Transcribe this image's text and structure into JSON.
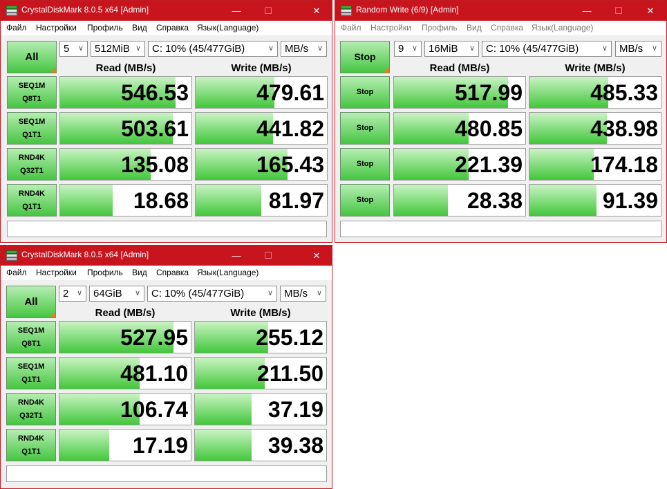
{
  "windows": [
    {
      "title": "CrystalDiskMark 8.0.5 x64 [Admin]",
      "controls": {
        "minimize": "—",
        "maximize": "☐",
        "close": "✕"
      },
      "menu": [
        "Файл",
        "Настройки",
        "Профиль",
        "Вид",
        "Справка",
        "Язык(Language)"
      ],
      "main_button": "All",
      "selects": {
        "count": "5",
        "size": "512MiB",
        "drive": "C: 10% (45/477GiB)",
        "unit": "MB/s"
      },
      "headers": {
        "read": "Read (MB/s)",
        "write": "Write (MB/s)"
      },
      "rows": [
        {
          "line1": "SEQ1M",
          "line2": "Q8T1",
          "read": "546.53",
          "write": "479.61",
          "read_fill": 0.88,
          "write_fill": 0.6
        },
        {
          "line1": "SEQ1M",
          "line2": "Q1T1",
          "read": "503.61",
          "write": "441.82",
          "read_fill": 0.86,
          "write_fill": 0.59
        },
        {
          "line1": "RND4K",
          "line2": "Q32T1",
          "read": "135.08",
          "write": "165.43",
          "read_fill": 0.69,
          "write_fill": 0.7
        },
        {
          "line1": "RND4K",
          "line2": "Q1T1",
          "read": "18.68",
          "write": "81.97",
          "read_fill": 0.4,
          "write_fill": 0.5
        }
      ],
      "status": ""
    },
    {
      "title": "Random Write (6/9) [Admin]",
      "controls": {
        "minimize": "—",
        "maximize": "☐",
        "close": "✕"
      },
      "menu": [
        "Файл",
        "Настройки",
        "Профиль",
        "Вид",
        "Справка",
        "Язык(Language)"
      ],
      "main_button": "Stop",
      "row_button": "Stop",
      "selects": {
        "count": "9",
        "size": "16MiB",
        "drive": "C: 10% (45/477GiB)",
        "unit": "MB/s"
      },
      "headers": {
        "read": "Read (MB/s)",
        "write": "Write (MB/s)"
      },
      "rows": [
        {
          "read": "517.99",
          "write": "485.33",
          "read_fill": 0.87,
          "write_fill": 0.6
        },
        {
          "read": "480.85",
          "write": "438.98",
          "read_fill": 0.57,
          "write_fill": 0.59
        },
        {
          "read": "221.39",
          "write": "174.18",
          "read_fill": 0.57,
          "write_fill": 0.49
        },
        {
          "read": "28.38",
          "write": "91.39",
          "read_fill": 0.41,
          "write_fill": 0.51
        }
      ],
      "status": ""
    },
    {
      "title": "CrystalDiskMark 8.0.5 x64 [Admin]",
      "controls": {
        "minimize": "—",
        "maximize": "☐",
        "close": "✕"
      },
      "menu": [
        "Файл",
        "Настройки",
        "Профиль",
        "Вид",
        "Справка",
        "Язык(Language)"
      ],
      "main_button": "All",
      "selects": {
        "count": "2",
        "size": "64GiB",
        "drive": "C: 10% (45/477GiB)",
        "unit": "MB/s"
      },
      "headers": {
        "read": "Read (MB/s)",
        "write": "Write (MB/s)"
      },
      "rows": [
        {
          "line1": "SEQ1M",
          "line2": "Q8T1",
          "read": "527.95",
          "write": "255.12",
          "read_fill": 0.87,
          "write_fill": 0.56
        },
        {
          "line1": "SEQ1M",
          "line2": "Q1T1",
          "read": "481.10",
          "write": "211.50",
          "read_fill": 0.61,
          "write_fill": 0.53
        },
        {
          "line1": "RND4K",
          "line2": "Q32T1",
          "read": "106.74",
          "write": "37.19",
          "read_fill": 0.61,
          "write_fill": 0.43
        },
        {
          "line1": "RND4K",
          "line2": "Q1T1",
          "read": "17.19",
          "write": "39.38",
          "read_fill": 0.38,
          "write_fill": 0.43
        }
      ],
      "status": ""
    }
  ]
}
